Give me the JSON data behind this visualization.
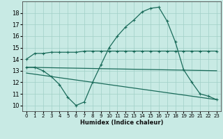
{
  "xlabel": "Humidex (Indice chaleur)",
  "xlim": [
    -0.5,
    23.5
  ],
  "ylim": [
    9.5,
    19.0
  ],
  "yticks": [
    10,
    11,
    12,
    13,
    14,
    15,
    16,
    17,
    18
  ],
  "xticks": [
    0,
    1,
    2,
    3,
    4,
    5,
    6,
    7,
    8,
    9,
    10,
    11,
    12,
    13,
    14,
    15,
    16,
    17,
    18,
    19,
    20,
    21,
    22,
    23
  ],
  "background_color": "#c8eae4",
  "grid_color": "#a0cfc7",
  "line_color": "#1a6b5a",
  "lines": [
    {
      "x": [
        0,
        1,
        2,
        3,
        4,
        5,
        6,
        7,
        8,
        9,
        10,
        11,
        12,
        13,
        14,
        15,
        16,
        17,
        18,
        19,
        20,
        21,
        22,
        23
      ],
      "y": [
        14.0,
        14.5,
        14.5,
        14.6,
        14.6,
        14.6,
        14.6,
        14.7,
        14.7,
        14.7,
        14.7,
        14.7,
        14.7,
        14.7,
        14.7,
        14.7,
        14.7,
        14.7,
        14.7,
        14.7,
        14.7,
        14.7,
        14.7,
        14.7
      ],
      "marker": true
    },
    {
      "x": [
        0,
        1,
        2,
        3,
        4,
        5,
        6,
        7,
        8,
        9,
        10,
        11,
        12,
        13,
        14,
        15,
        16,
        17,
        18,
        19,
        20,
        21,
        22,
        23
      ],
      "y": [
        13.3,
        13.3,
        13.0,
        12.5,
        11.8,
        10.7,
        10.0,
        10.3,
        12.0,
        13.5,
        15.0,
        16.0,
        16.8,
        17.4,
        18.1,
        18.4,
        18.5,
        17.3,
        15.5,
        13.1,
        12.0,
        11.0,
        10.8,
        10.5
      ],
      "marker": true
    },
    {
      "x": [
        0,
        23
      ],
      "y": [
        13.3,
        13.0
      ],
      "marker": false
    },
    {
      "x": [
        0,
        23
      ],
      "y": [
        12.8,
        10.5
      ],
      "marker": false
    }
  ]
}
